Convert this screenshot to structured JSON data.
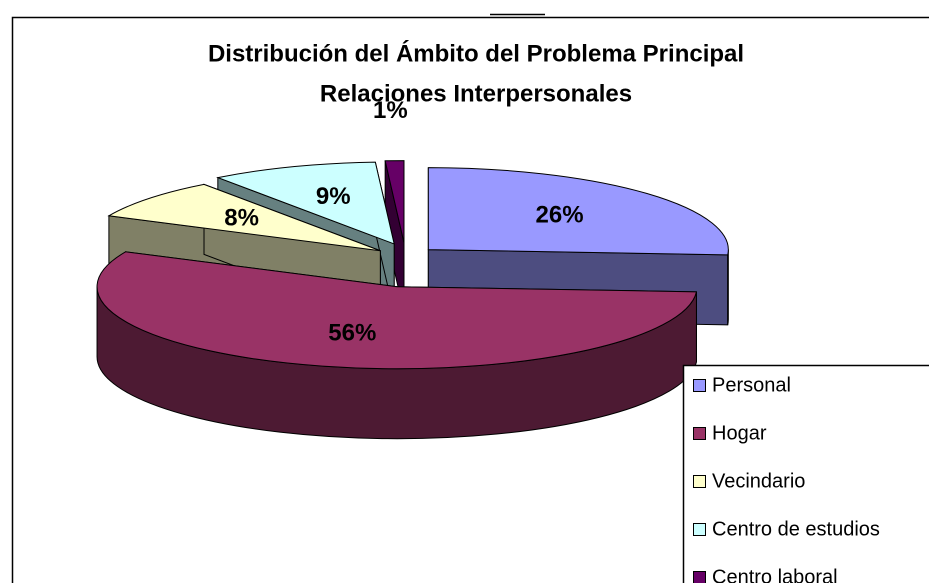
{
  "chart_data": {
    "type": "pie3d",
    "title": "Distribución del Ámbito del Problema Principal",
    "subtitle": "Relaciones Interpersonales",
    "categories": [
      "Personal",
      "Hogar",
      "Vecindario",
      "Centro de estudios",
      "Centro laboral"
    ],
    "values": [
      26,
      56,
      8,
      9,
      1
    ],
    "value_labels": [
      "26%",
      "56%",
      "8%",
      "9%",
      "1%"
    ],
    "colors": [
      "#9999ff",
      "#993366",
      "#ffffcc",
      "#ccffff",
      "#660066"
    ],
    "legend": "right-bottom"
  }
}
